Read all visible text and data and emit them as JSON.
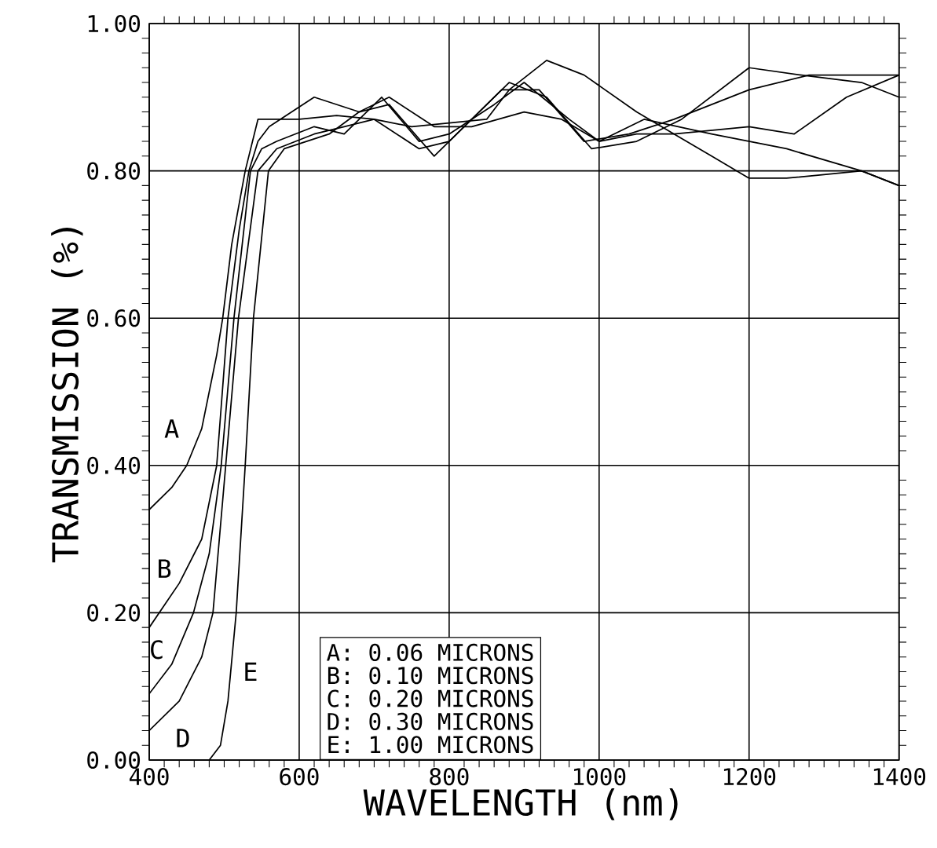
{
  "chart_data": {
    "type": "line",
    "xlabel": "WAVELENGTH (nm)",
    "ylabel": "TRANSMISSION (%)",
    "xlim": [
      400,
      1400
    ],
    "ylim": [
      0,
      1
    ],
    "xticks": [
      400,
      600,
      800,
      1000,
      1200,
      1400
    ],
    "yticks": [
      {
        "value": 0,
        "label": "0.00"
      },
      {
        "value": 0.2,
        "label": "0.20"
      },
      {
        "value": 0.4,
        "label": "0.40"
      },
      {
        "value": 0.6,
        "label": "0.60"
      },
      {
        "value": 0.8,
        "label": "0.80"
      },
      {
        "value": 1,
        "label": "1.00"
      }
    ],
    "grid": true,
    "legend": false,
    "marker": "none",
    "line_style": "solid",
    "annotations": [
      "A: 0.06 MICRONS",
      "B: 0.10 MICRONS",
      "C: 0.20 MICRONS",
      "D: 0.30 MICRONS",
      "E: 1.00 MICRONS"
    ],
    "series": [
      {
        "name": "A",
        "color": "#000000",
        "x": [
          400,
          430,
          450,
          470,
          490,
          498,
          510,
          528,
          545,
          560,
          600,
          650,
          700,
          750,
          800,
          850,
          880,
          930,
          980,
          1050,
          1100,
          1150,
          1200,
          1250,
          1300,
          1350,
          1400
        ],
        "values": [
          0.34,
          0.37,
          0.4,
          0.45,
          0.55,
          0.6,
          0.7,
          0.8,
          0.87,
          0.87,
          0.87,
          0.875,
          0.87,
          0.86,
          0.865,
          0.87,
          0.91,
          0.95,
          0.93,
          0.88,
          0.85,
          0.82,
          0.79,
          0.79,
          0.795,
          0.8,
          0.78
        ]
      },
      {
        "name": "B",
        "color": "#000000",
        "x": [
          400,
          440,
          470,
          490,
          505,
          520,
          533,
          545,
          560,
          620,
          680,
          720,
          780,
          830,
          900,
          950,
          1000,
          1060,
          1150,
          1250,
          1350,
          1400
        ],
        "values": [
          0.18,
          0.24,
          0.3,
          0.4,
          0.6,
          0.72,
          0.8,
          0.84,
          0.86,
          0.9,
          0.88,
          0.9,
          0.86,
          0.86,
          0.88,
          0.87,
          0.84,
          0.87,
          0.85,
          0.83,
          0.8,
          0.78
        ]
      },
      {
        "name": "C",
        "color": "#000000",
        "x": [
          400,
          430,
          459,
          480,
          496,
          513,
          535,
          550,
          570,
          620,
          660,
          710,
          760,
          800,
          860,
          900,
          960,
          1000,
          1050,
          1100,
          1200,
          1260,
          1330,
          1400
        ],
        "values": [
          0.09,
          0.13,
          0.2,
          0.28,
          0.4,
          0.6,
          0.8,
          0.83,
          0.84,
          0.86,
          0.85,
          0.9,
          0.84,
          0.85,
          0.89,
          0.92,
          0.87,
          0.84,
          0.85,
          0.85,
          0.86,
          0.85,
          0.9,
          0.93
        ]
      },
      {
        "name": "D",
        "color": "#000000",
        "x": [
          400,
          440,
          470,
          485,
          502,
          519,
          545,
          570,
          620,
          660,
          700,
          760,
          800,
          870,
          920,
          980,
          1040,
          1100,
          1200,
          1280,
          1340,
          1400
        ],
        "values": [
          0.04,
          0.08,
          0.14,
          0.2,
          0.4,
          0.6,
          0.8,
          0.83,
          0.85,
          0.86,
          0.87,
          0.83,
          0.84,
          0.91,
          0.91,
          0.84,
          0.85,
          0.87,
          0.91,
          0.93,
          0.93,
          0.93
        ]
      },
      {
        "name": "E",
        "color": "#000000",
        "x": [
          400,
          480,
          495,
          505,
          516,
          528,
          539,
          559,
          580,
          640,
          680,
          720,
          780,
          820,
          880,
          930,
          990,
          1050,
          1110,
          1200,
          1270,
          1350,
          1400
        ],
        "values": [
          0,
          0,
          0.02,
          0.08,
          0.2,
          0.4,
          0.6,
          0.8,
          0.83,
          0.85,
          0.88,
          0.89,
          0.82,
          0.86,
          0.92,
          0.9,
          0.83,
          0.84,
          0.87,
          0.94,
          0.93,
          0.92,
          0.9
        ]
      }
    ]
  }
}
